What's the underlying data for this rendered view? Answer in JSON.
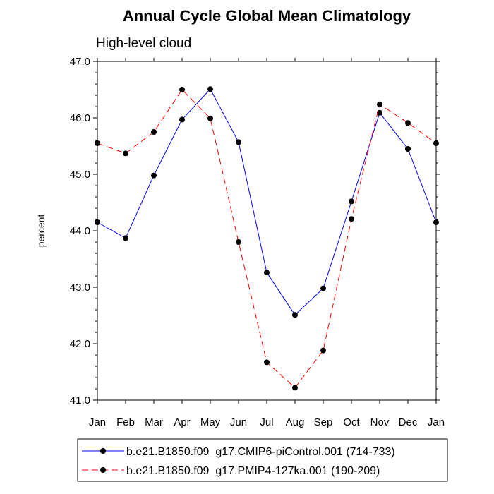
{
  "chart_data": {
    "type": "line",
    "title": "Annual Cycle Global Mean Climatology",
    "subtitle": "High-level cloud",
    "xlabel": "",
    "ylabel": "percent",
    "categories": [
      "Jan",
      "Feb",
      "Mar",
      "Apr",
      "May",
      "Jun",
      "Jul",
      "Aug",
      "Sep",
      "Oct",
      "Nov",
      "Dec",
      "Jan"
    ],
    "ylim": [
      41.0,
      47.0
    ],
    "yticks": [
      "41.0",
      "42.0",
      "43.0",
      "44.0",
      "45.0",
      "46.0",
      "47.0"
    ],
    "grid": false,
    "legend_position": "bottom",
    "series": [
      {
        "name": "b.e21.B1850.f09_g17.CMIP6-piControl.001 (714-733)",
        "color": "#0000ff",
        "dash": "solid",
        "values": [
          44.15,
          43.87,
          44.98,
          45.97,
          46.51,
          45.57,
          43.26,
          42.51,
          42.98,
          44.52,
          46.09,
          45.45,
          44.15
        ]
      },
      {
        "name": "b.e21.B1850.f09_g17.PMIP4-127ka.001 (190-209)",
        "color": "#ff0000",
        "dash": "dashed",
        "values": [
          45.55,
          45.37,
          45.75,
          46.5,
          45.99,
          43.8,
          41.67,
          41.22,
          41.88,
          44.21,
          46.24,
          45.91,
          45.55
        ]
      }
    ]
  }
}
